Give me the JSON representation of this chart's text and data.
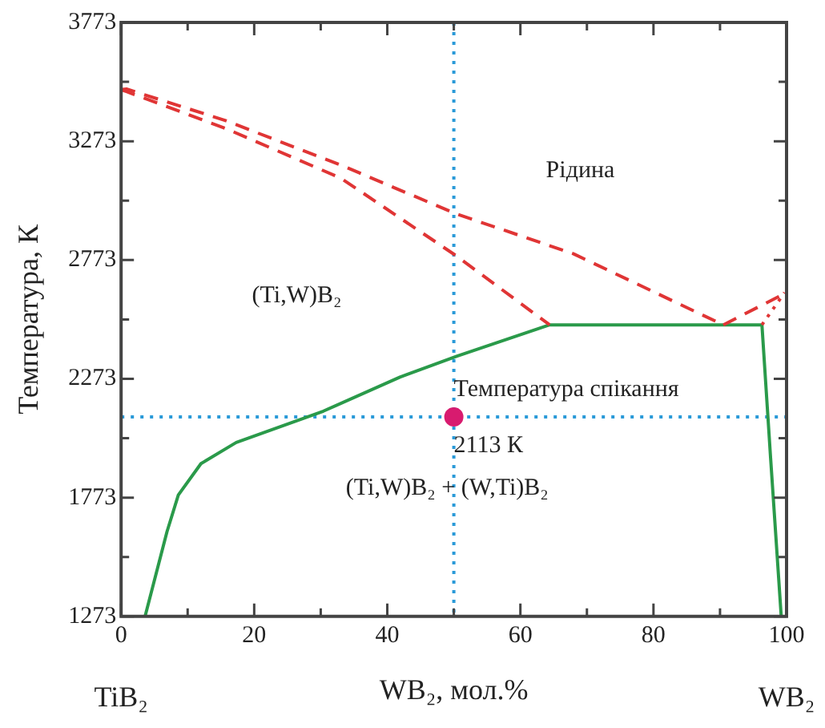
{
  "chart_data": {
    "type": "line",
    "xlabel": "WB₂, мол.%",
    "ylabel": "Температура, К",
    "xlim": [
      0,
      100
    ],
    "xticks": [
      0,
      {
        "value": 10,
        "label": null
      },
      20,
      {
        "value": 30,
        "label": null
      },
      40,
      {
        "value": 50,
        "label": null
      },
      60,
      {
        "value": 70,
        "label": null
      },
      80,
      {
        "value": 90,
        "label": null
      },
      100
    ],
    "ylim": [
      1273,
      3773
    ],
    "yticks": [
      1273,
      {
        "value": 1523,
        "label": null
      },
      1773,
      {
        "value": 2023,
        "label": null
      },
      2273,
      {
        "value": 2523,
        "label": null
      },
      2773,
      {
        "value": 3023,
        "label": null
      },
      3273,
      {
        "value": 3523,
        "label": null
      },
      3773
    ],
    "grid": false,
    "legend": false,
    "marker": "none",
    "series": [
      {
        "color": "#e03535",
        "line_style": "dashed",
        "x": [
          0,
          0.8,
          15.6,
          33,
          50.3,
          68,
          90.5
        ],
        "values": [
          3490,
          3493,
          3361,
          3173,
          2968,
          2799,
          2500
        ]
      },
      {
        "color": "#e03535",
        "line_style": "dashed",
        "x": [
          0,
          0.8,
          15.6,
          33,
          50.3,
          64.4
        ],
        "values": [
          3490,
          3482,
          3328,
          3118,
          2792,
          2500
        ]
      },
      {
        "color": "#e03535",
        "line_style": "dashed",
        "x": [
          90.5,
          100
        ],
        "values": [
          2500,
          2636
        ]
      },
      {
        "color": "#e03535",
        "line_style": "dotted",
        "x": [
          96.3,
          99.7
        ],
        "values": [
          2500,
          2636
        ]
      },
      {
        "color": "#2a9a4a",
        "line_style": "solid",
        "x": [
          3.6,
          6.9,
          8.6,
          12,
          17.3,
          30.4,
          41.9,
          50.5,
          64.4,
          96.3,
          97.6,
          99.2
        ],
        "values": [
          1273,
          1630,
          1784,
          1916,
          2005,
          2137,
          2280,
          2369,
          2500,
          2500,
          1941,
          1273
        ]
      },
      {
        "type": "scatter",
        "color": "#d81b6f",
        "marker": "circle",
        "x": [
          50
        ],
        "values": [
          2113
        ]
      }
    ],
    "ref_lines": [
      {
        "axis": "x",
        "value": 50,
        "color": "#2a9ad8",
        "line_style": "dotted"
      },
      {
        "axis": "y",
        "value": 2113,
        "color": "#2a9ad8",
        "line_style": "dotted"
      }
    ],
    "annotations": [
      "Рідина",
      "(Ti,W)B₂",
      "(Ti,W)B₂ + (W,Ti)B₂",
      {
        "text": "Температура спікання",
        "x": 50,
        "y": 2113
      },
      {
        "text": "2113 К",
        "x": 50,
        "y": 2113
      },
      "TiB₂",
      "WB₂"
    ]
  }
}
